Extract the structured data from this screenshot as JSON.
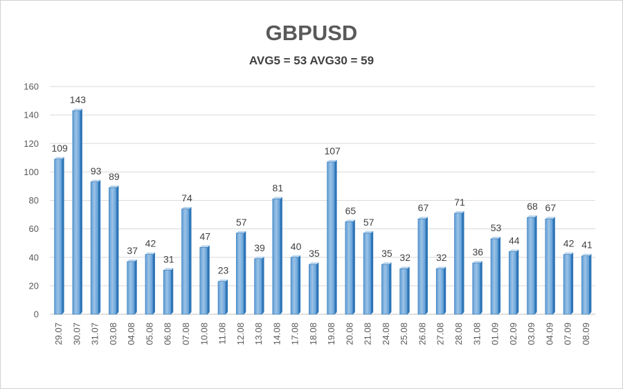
{
  "chart_data": {
    "type": "bar",
    "title": "GBPUSD",
    "subtitle": "AVG5 = 53 AVG30 = 59",
    "categories": [
      "29.07",
      "30.07",
      "31.07",
      "03.08",
      "04.08",
      "05.08",
      "06.08",
      "07.08",
      "10.08",
      "11.08",
      "12.08",
      "13.08",
      "14.08",
      "17.08",
      "18.08",
      "19.08",
      "20.08",
      "21.08",
      "24.08",
      "25.08",
      "26.08",
      "27.08",
      "28.08",
      "31.08",
      "01.09",
      "02.09",
      "03.09",
      "04.09",
      "07.09",
      "08.09"
    ],
    "values": [
      109,
      143,
      93,
      89,
      37,
      42,
      31,
      74,
      47,
      23,
      57,
      39,
      81,
      40,
      35,
      107,
      65,
      57,
      35,
      32,
      67,
      32,
      71,
      36,
      53,
      44,
      68,
      67,
      42,
      41
    ],
    "ylim": [
      0,
      160
    ],
    "yticks": [
      0,
      20,
      40,
      60,
      80,
      100,
      120,
      140,
      160
    ],
    "grid": true,
    "legend": "none",
    "colors": {
      "bar_front": "#5b9bd5",
      "bar_front_light": "#9dc3e6",
      "bar_side": "#2e75b6",
      "bar_top": "#bdd7ee",
      "grid": "#d9d9d9"
    }
  }
}
